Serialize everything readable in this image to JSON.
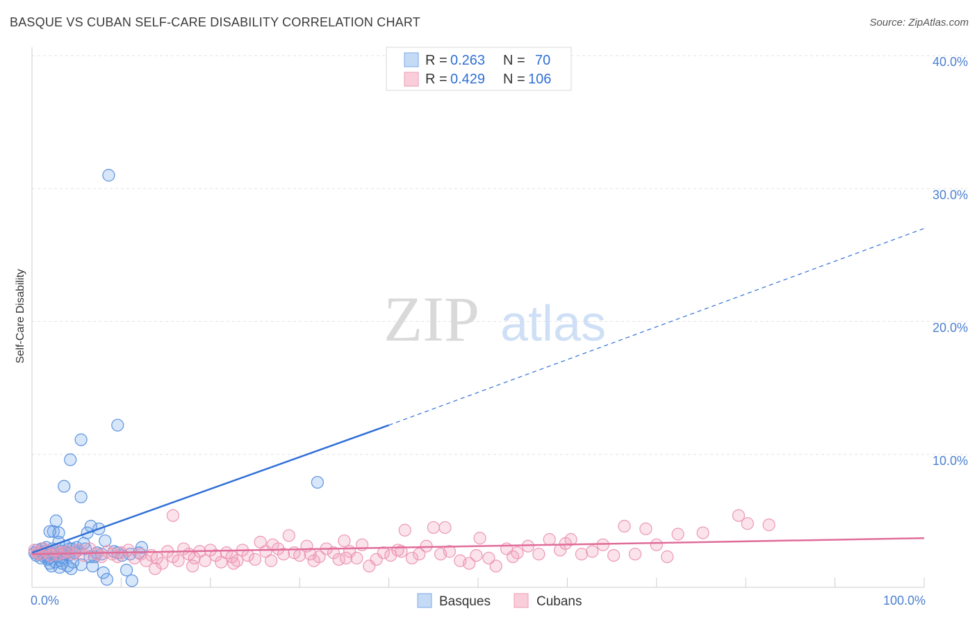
{
  "title": "BASQUE VS CUBAN SELF-CARE DISABILITY CORRELATION CHART",
  "source": "Source: ZipAtlas.com",
  "watermark": {
    "zip": "ZIP",
    "atlas": "atlas"
  },
  "chart_data": {
    "type": "scatter",
    "ylabel": "Self-Care Disability",
    "xlim": [
      0,
      100
    ],
    "ylim": [
      0,
      40
    ],
    "y_ticks": [
      {
        "value": 10,
        "label": "10.0%"
      },
      {
        "value": 20,
        "label": "20.0%"
      },
      {
        "value": 30,
        "label": "30.0%"
      },
      {
        "value": 40,
        "label": "40.0%"
      }
    ],
    "x_ticks": [
      {
        "value": 0,
        "label": "0.0%"
      },
      {
        "value": 100,
        "label": "100.0%"
      }
    ],
    "grid": true,
    "legend_position": "top-center",
    "series": [
      {
        "name": "Basques",
        "color": "#6fa4e8",
        "line_color": "#2f6fd6",
        "r": "0.263",
        "n": "70",
        "trend": {
          "x0": 0,
          "y0": 2.6,
          "x1": 40,
          "y1": 12.2,
          "dash_to_x": 100,
          "dash_to_y": 27.0
        },
        "points": [
          [
            0.3,
            2.6
          ],
          [
            0.5,
            2.4
          ],
          [
            0.6,
            2.8
          ],
          [
            0.8,
            2.5
          ],
          [
            1.0,
            2.2
          ],
          [
            1.1,
            2.9
          ],
          [
            1.2,
            2.5
          ],
          [
            1.4,
            2.3
          ],
          [
            1.5,
            2.7
          ],
          [
            1.6,
            3.0
          ],
          [
            1.7,
            2.4
          ],
          [
            1.8,
            2.1
          ],
          [
            2.0,
            1.8
          ],
          [
            2.1,
            2.6
          ],
          [
            2.2,
            1.6
          ],
          [
            2.3,
            2.9
          ],
          [
            2.4,
            4.2
          ],
          [
            2.5,
            2.5
          ],
          [
            2.6,
            1.9
          ],
          [
            2.8,
            2.3
          ],
          [
            3.0,
            3.4
          ],
          [
            3.1,
            1.5
          ],
          [
            3.2,
            2.0
          ],
          [
            3.3,
            2.7
          ],
          [
            3.4,
            1.8
          ],
          [
            3.5,
            2.2
          ],
          [
            3.6,
            2.6
          ],
          [
            3.8,
            3.1
          ],
          [
            4.0,
            1.6
          ],
          [
            4.1,
            2.4
          ],
          [
            4.2,
            2.9
          ],
          [
            4.4,
            1.4
          ],
          [
            4.6,
            1.9
          ],
          [
            4.8,
            2.6
          ],
          [
            5.0,
            3.0
          ],
          [
            3.0,
            4.1
          ],
          [
            2.0,
            4.2
          ],
          [
            5.5,
            1.7
          ],
          [
            3.5,
            2.5
          ],
          [
            1.9,
            2.2
          ],
          [
            6.2,
            4.1
          ],
          [
            6.8,
            1.6
          ],
          [
            7.0,
            2.3
          ],
          [
            7.3,
            2.6
          ],
          [
            8.0,
            1.1
          ],
          [
            8.4,
            0.6
          ],
          [
            9.2,
            2.7
          ],
          [
            10.1,
            2.4
          ],
          [
            10.6,
            1.3
          ],
          [
            11.0,
            2.5
          ],
          [
            11.2,
            0.5
          ],
          [
            12.0,
            2.6
          ],
          [
            6.0,
            2.9
          ],
          [
            5.8,
            3.3
          ],
          [
            4.5,
            2.9
          ],
          [
            7.8,
            2.5
          ],
          [
            9.6,
            2.6
          ],
          [
            8.2,
            3.5
          ],
          [
            7.5,
            4.4
          ],
          [
            6.5,
            2.3
          ],
          [
            12.3,
            3.0
          ],
          [
            5.2,
            2.8
          ],
          [
            3.9,
            2.6
          ],
          [
            2.7,
            5.0
          ],
          [
            8.6,
            31.0
          ],
          [
            9.6,
            12.2
          ],
          [
            5.5,
            11.1
          ],
          [
            4.3,
            9.6
          ],
          [
            3.6,
            7.6
          ],
          [
            5.5,
            6.8
          ],
          [
            32.0,
            7.9
          ],
          [
            6.6,
            4.6
          ]
        ]
      },
      {
        "name": "Cubans",
        "color": "#f29bb6",
        "line_color": "#e06c98",
        "r": "0.429",
        "n": "106",
        "trend": {
          "x0": 0,
          "y0": 2.5,
          "x1": 100,
          "y1": 3.7
        },
        "points": [
          [
            0.3,
            2.8
          ],
          [
            0.6,
            2.6
          ],
          [
            0.9,
            2.5
          ],
          [
            1.3,
            2.9
          ],
          [
            1.7,
            2.7
          ],
          [
            2.1,
            2.4
          ],
          [
            2.6,
            2.8
          ],
          [
            3.0,
            2.5
          ],
          [
            3.5,
            2.6
          ],
          [
            4.0,
            2.7
          ],
          [
            4.6,
            2.5
          ],
          [
            5.2,
            2.8
          ],
          [
            5.8,
            2.4
          ],
          [
            6.5,
            2.9
          ],
          [
            7.2,
            2.5
          ],
          [
            7.8,
            2.3
          ],
          [
            8.5,
            2.7
          ],
          [
            9.0,
            2.5
          ],
          [
            9.6,
            2.3
          ],
          [
            10.0,
            2.6
          ],
          [
            10.8,
            2.8
          ],
          [
            11.5,
            2.2
          ],
          [
            12.2,
            2.5
          ],
          [
            12.8,
            2.0
          ],
          [
            13.4,
            2.4
          ],
          [
            14.0,
            2.2
          ],
          [
            14.6,
            1.8
          ],
          [
            15.2,
            2.7
          ],
          [
            15.8,
            2.3
          ],
          [
            16.4,
            2.0
          ],
          [
            17.0,
            2.9
          ],
          [
            17.6,
            2.5
          ],
          [
            18.2,
            2.2
          ],
          [
            18.8,
            2.7
          ],
          [
            19.4,
            2.0
          ],
          [
            20.0,
            2.8
          ],
          [
            20.6,
            2.4
          ],
          [
            21.2,
            1.9
          ],
          [
            21.8,
            2.6
          ],
          [
            22.4,
            2.3
          ],
          [
            23.0,
            2.0
          ],
          [
            23.6,
            2.8
          ],
          [
            24.2,
            2.4
          ],
          [
            25.0,
            2.1
          ],
          [
            25.6,
            3.4
          ],
          [
            26.2,
            2.7
          ],
          [
            27.0,
            3.2
          ],
          [
            27.6,
            2.9
          ],
          [
            28.2,
            2.5
          ],
          [
            28.8,
            3.9
          ],
          [
            29.4,
            2.6
          ],
          [
            30.0,
            2.4
          ],
          [
            30.8,
            3.1
          ],
          [
            31.6,
            2.0
          ],
          [
            32.2,
            2.3
          ],
          [
            33.0,
            2.9
          ],
          [
            33.8,
            2.6
          ],
          [
            34.4,
            2.1
          ],
          [
            35.0,
            3.5
          ],
          [
            35.6,
            2.7
          ],
          [
            36.4,
            2.2
          ],
          [
            37.0,
            3.2
          ],
          [
            37.8,
            1.6
          ],
          [
            38.6,
            2.1
          ],
          [
            39.4,
            2.6
          ],
          [
            40.2,
            2.4
          ],
          [
            41.0,
            2.8
          ],
          [
            41.8,
            4.3
          ],
          [
            42.6,
            2.2
          ],
          [
            43.4,
            2.5
          ],
          [
            44.2,
            3.1
          ],
          [
            45.0,
            4.5
          ],
          [
            45.8,
            2.5
          ],
          [
            46.8,
            2.7
          ],
          [
            48.0,
            2.0
          ],
          [
            49.0,
            1.8
          ],
          [
            50.2,
            3.7
          ],
          [
            51.2,
            2.2
          ],
          [
            52.0,
            1.6
          ],
          [
            53.2,
            2.9
          ],
          [
            54.4,
            2.6
          ],
          [
            55.6,
            3.1
          ],
          [
            56.8,
            2.5
          ],
          [
            58.0,
            3.6
          ],
          [
            59.2,
            2.8
          ],
          [
            60.4,
            3.6
          ],
          [
            61.6,
            2.5
          ],
          [
            62.8,
            2.7
          ],
          [
            64.0,
            3.2
          ],
          [
            65.2,
            2.4
          ],
          [
            66.4,
            4.6
          ],
          [
            67.6,
            2.5
          ],
          [
            68.8,
            4.4
          ],
          [
            70.0,
            3.2
          ],
          [
            71.2,
            2.3
          ],
          [
            72.4,
            4.0
          ],
          [
            75.2,
            4.1
          ],
          [
            79.2,
            5.4
          ],
          [
            80.2,
            4.8
          ],
          [
            82.6,
            4.7
          ],
          [
            13.8,
            1.4
          ],
          [
            18.0,
            1.6
          ],
          [
            22.6,
            1.8
          ],
          [
            26.8,
            2.0
          ],
          [
            31.2,
            2.5
          ],
          [
            35.2,
            2.2
          ],
          [
            41.4,
            2.7
          ],
          [
            46.3,
            4.5
          ],
          [
            49.8,
            2.4
          ],
          [
            53.9,
            2.3
          ],
          [
            59.8,
            3.3
          ],
          [
            15.8,
            5.4
          ]
        ]
      }
    ]
  }
}
